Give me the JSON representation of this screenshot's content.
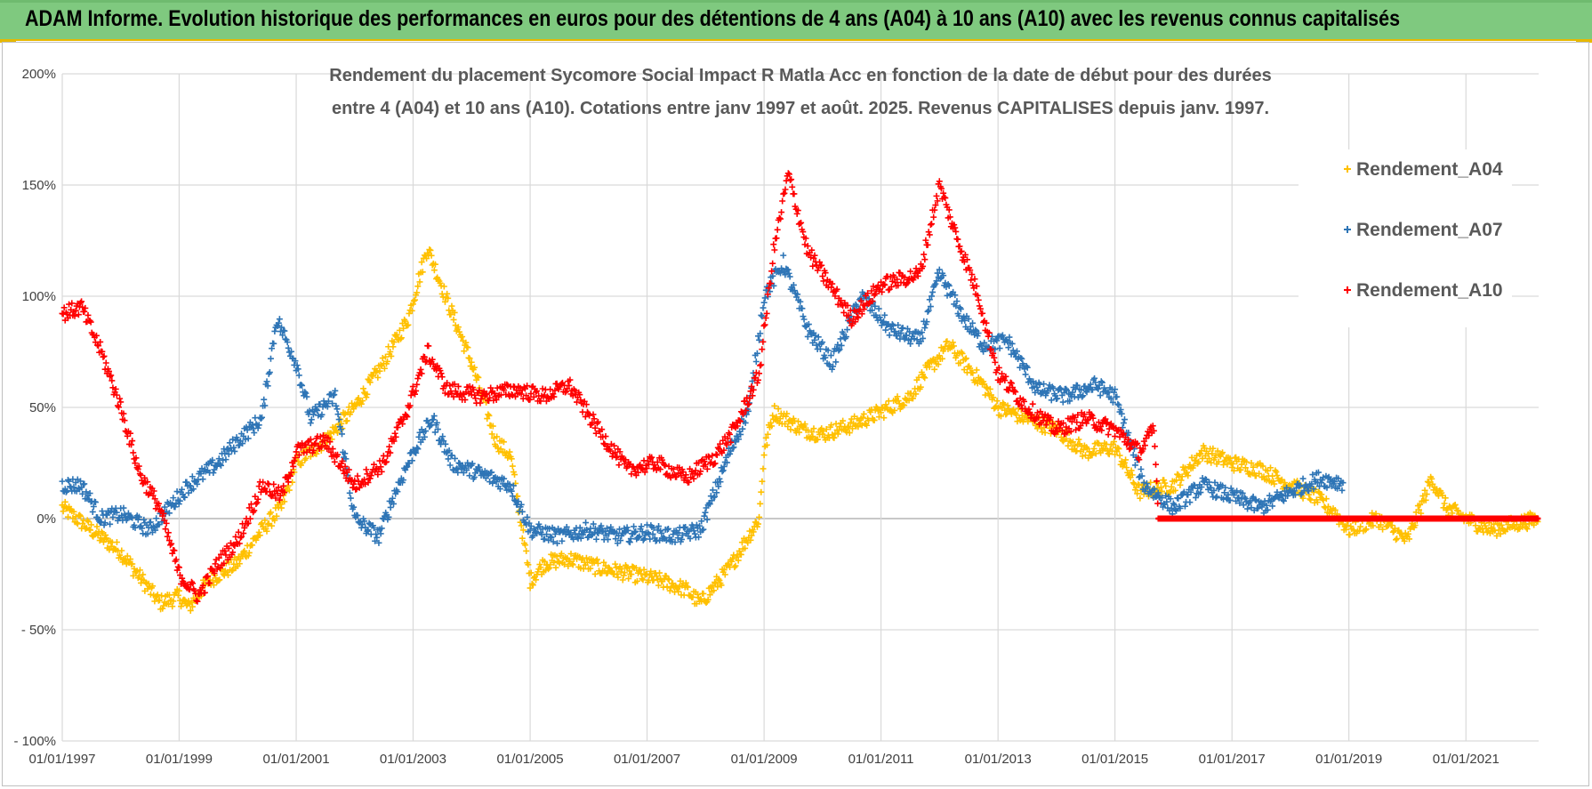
{
  "header": {
    "title": "ADAM Informe. Evolution historique des performances en euros pour des détentions de 4 ans (A04) à 10 ans (A10) avec les revenus connus capitalisés"
  },
  "colors": {
    "banner": "#7fc97f",
    "banner_border": "#e7b800",
    "A04": "#ffc000",
    "A07": "#2e75b6",
    "A10": "#ff0000",
    "grid": "#d9d9d9"
  },
  "chart_data": {
    "type": "scatter",
    "title_lines": [
      "Rendement du placement Sycomore Social Impact R Matla Acc en fonction de la date de début pour des durées",
      "entre 4 (A04) et 10 ans (A10).  Cotations entre janv 1997 et août. 2025. Revenus CAPITALISES depuis janv. 1997."
    ],
    "xlabel": "",
    "ylabel": "",
    "x_ticks": [
      "01/01/1997",
      "01/01/1999",
      "01/01/2001",
      "01/01/2003",
      "01/01/2005",
      "01/01/2007",
      "01/01/2009",
      "01/01/2011",
      "01/01/2013",
      "01/01/2015",
      "01/01/2017",
      "01/01/2019",
      "01/01/2021"
    ],
    "xlim": [
      "1997-01-01",
      "2022-03-31"
    ],
    "y_ticks": [
      "200%",
      "150%",
      "100%",
      "50%",
      "0%",
      "- 50%",
      "- 100%"
    ],
    "ylim": [
      -100,
      200
    ],
    "y_unit": "%",
    "grid": true,
    "legend_position": "right",
    "series": [
      {
        "name": "Rendement_A04",
        "color": "#ffc000",
        "points": [
          [
            "1997-01-01",
            5
          ],
          [
            "1997-07-01",
            -5
          ],
          [
            "1998-01-01",
            -15
          ],
          [
            "1998-07-01",
            -32
          ],
          [
            "1998-09-01",
            -38
          ],
          [
            "1999-01-01",
            -35
          ],
          [
            "1999-03-01",
            -40
          ],
          [
            "1999-07-01",
            -28
          ],
          [
            "2000-01-01",
            -20
          ],
          [
            "2000-06-01",
            -5
          ],
          [
            "2000-10-01",
            5
          ],
          [
            "2001-01-01",
            25
          ],
          [
            "2001-07-01",
            35
          ],
          [
            "2002-01-01",
            50
          ],
          [
            "2002-07-01",
            70
          ],
          [
            "2002-12-01",
            90
          ],
          [
            "2003-04-01",
            122
          ],
          [
            "2003-08-01",
            98
          ],
          [
            "2004-01-01",
            70
          ],
          [
            "2004-06-01",
            35
          ],
          [
            "2004-09-01",
            28
          ],
          [
            "2005-01-01",
            -28
          ],
          [
            "2005-04-01",
            -20
          ],
          [
            "2005-09-01",
            -18
          ],
          [
            "2006-03-01",
            -22
          ],
          [
            "2006-10-01",
            -25
          ],
          [
            "2007-04-01",
            -28
          ],
          [
            "2007-09-01",
            -32
          ],
          [
            "2007-12-01",
            -38
          ],
          [
            "2008-06-01",
            -22
          ],
          [
            "2008-12-01",
            0
          ],
          [
            "2009-01-01",
            30
          ],
          [
            "2009-03-01",
            48
          ],
          [
            "2009-09-01",
            40
          ],
          [
            "2010-01-01",
            38
          ],
          [
            "2010-07-01",
            42
          ],
          [
            "2011-01-01",
            48
          ],
          [
            "2011-07-01",
            55
          ],
          [
            "2011-10-01",
            65
          ],
          [
            "2012-03-01",
            78
          ],
          [
            "2012-10-01",
            60
          ],
          [
            "2013-01-01",
            50
          ],
          [
            "2013-07-01",
            45
          ],
          [
            "2014-01-01",
            40
          ],
          [
            "2014-07-01",
            30
          ],
          [
            "2015-01-01",
            32
          ],
          [
            "2015-06-01",
            12
          ],
          [
            "2016-01-01",
            15
          ],
          [
            "2016-07-01",
            30
          ],
          [
            "2017-01-01",
            25
          ],
          [
            "2017-07-01",
            22
          ],
          [
            "2018-01-01",
            15
          ],
          [
            "2018-06-01",
            10
          ],
          [
            "2018-10-01",
            3
          ],
          [
            "2019-01-01",
            -5
          ],
          [
            "2019-07-01",
            0
          ],
          [
            "2020-01-01",
            -10
          ],
          [
            "2020-06-01",
            18
          ],
          [
            "2020-09-01",
            5
          ],
          [
            "2021-01-01",
            0
          ],
          [
            "2021-06-01",
            -5
          ],
          [
            "2022-03-31",
            0
          ]
        ]
      },
      {
        "name": "Rendement_A07",
        "color": "#2e75b6",
        "points": [
          [
            "1997-01-01",
            15
          ],
          [
            "1997-05-01",
            15
          ],
          [
            "1997-09-01",
            0
          ],
          [
            "1998-01-01",
            2
          ],
          [
            "1998-07-01",
            -5
          ],
          [
            "1998-11-01",
            5
          ],
          [
            "1999-03-01",
            15
          ],
          [
            "1999-09-01",
            25
          ],
          [
            "2000-01-01",
            35
          ],
          [
            "2000-06-01",
            45
          ],
          [
            "2000-09-01",
            90
          ],
          [
            "2001-01-01",
            70
          ],
          [
            "2001-04-01",
            45
          ],
          [
            "2001-09-01",
            55
          ],
          [
            "2002-01-01",
            0
          ],
          [
            "2002-06-01",
            -8
          ],
          [
            "2002-09-01",
            10
          ],
          [
            "2003-01-01",
            30
          ],
          [
            "2003-05-01",
            45
          ],
          [
            "2003-09-01",
            25
          ],
          [
            "2004-03-01",
            20
          ],
          [
            "2004-09-01",
            15
          ],
          [
            "2005-01-01",
            -5
          ],
          [
            "2005-07-01",
            -8
          ],
          [
            "2006-01-01",
            -5
          ],
          [
            "2006-07-01",
            -8
          ],
          [
            "2007-01-01",
            -6
          ],
          [
            "2007-07-01",
            -8
          ],
          [
            "2007-12-01",
            -5
          ],
          [
            "2008-06-01",
            30
          ],
          [
            "2008-10-01",
            50
          ],
          [
            "2009-01-01",
            100
          ],
          [
            "2009-05-01",
            115
          ],
          [
            "2009-10-01",
            85
          ],
          [
            "2010-03-01",
            70
          ],
          [
            "2010-09-01",
            100
          ],
          [
            "2011-03-01",
            85
          ],
          [
            "2011-09-01",
            80
          ],
          [
            "2012-01-01",
            110
          ],
          [
            "2012-06-01",
            90
          ],
          [
            "2012-10-01",
            78
          ],
          [
            "2013-03-01",
            80
          ],
          [
            "2013-09-01",
            58
          ],
          [
            "2014-03-01",
            55
          ],
          [
            "2014-09-01",
            60
          ],
          [
            "2015-01-01",
            55
          ],
          [
            "2015-07-01",
            15
          ],
          [
            "2016-01-01",
            5
          ],
          [
            "2016-07-01",
            15
          ],
          [
            "2017-01-01",
            10
          ],
          [
            "2017-07-01",
            5
          ],
          [
            "2018-01-01",
            12
          ],
          [
            "2018-07-01",
            18
          ],
          [
            "2018-12-01",
            16
          ]
        ]
      },
      {
        "name": "Rendement_A10",
        "color": "#ff0000",
        "points": [
          [
            "1997-01-01",
            92
          ],
          [
            "1997-05-01",
            95
          ],
          [
            "1997-09-01",
            75
          ],
          [
            "1998-01-01",
            50
          ],
          [
            "1998-05-01",
            20
          ],
          [
            "1998-09-01",
            5
          ],
          [
            "1999-01-01",
            -25
          ],
          [
            "1999-05-01",
            -35
          ],
          [
            "1999-09-01",
            -20
          ],
          [
            "2000-01-01",
            -10
          ],
          [
            "2000-06-01",
            15
          ],
          [
            "2000-10-01",
            10
          ],
          [
            "2001-01-01",
            30
          ],
          [
            "2001-07-01",
            35
          ],
          [
            "2002-01-01",
            15
          ],
          [
            "2002-07-01",
            25
          ],
          [
            "2002-12-01",
            50
          ],
          [
            "2003-04-01",
            75
          ],
          [
            "2003-08-01",
            58
          ],
          [
            "2004-03-01",
            55
          ],
          [
            "2004-10-01",
            58
          ],
          [
            "2005-04-01",
            55
          ],
          [
            "2005-09-01",
            60
          ],
          [
            "2006-03-01",
            40
          ],
          [
            "2006-09-01",
            22
          ],
          [
            "2007-03-01",
            25
          ],
          [
            "2007-09-01",
            18
          ],
          [
            "2008-03-01",
            28
          ],
          [
            "2008-07-01",
            40
          ],
          [
            "2008-12-01",
            65
          ],
          [
            "2009-03-01",
            120
          ],
          [
            "2009-06-01",
            155
          ],
          [
            "2009-10-01",
            120
          ],
          [
            "2010-01-01",
            110
          ],
          [
            "2010-07-01",
            90
          ],
          [
            "2011-01-01",
            105
          ],
          [
            "2011-09-01",
            110
          ],
          [
            "2012-01-01",
            150
          ],
          [
            "2012-04-01",
            130
          ],
          [
            "2012-09-01",
            100
          ],
          [
            "2013-01-01",
            65
          ],
          [
            "2013-07-01",
            50
          ],
          [
            "2014-01-01",
            40
          ],
          [
            "2014-07-01",
            45
          ],
          [
            "2015-01-01",
            40
          ],
          [
            "2015-06-01",
            30
          ],
          [
            "2015-09-01",
            40
          ],
          [
            "2015-10-01",
            0
          ],
          [
            "2016-07-01",
            0
          ],
          [
            "2017-07-01",
            0
          ],
          [
            "2018-07-01",
            0
          ],
          [
            "2019-07-01",
            0
          ],
          [
            "2020-07-01",
            0
          ],
          [
            "2021-07-01",
            0
          ],
          [
            "2022-03-31",
            0
          ]
        ]
      }
    ]
  }
}
